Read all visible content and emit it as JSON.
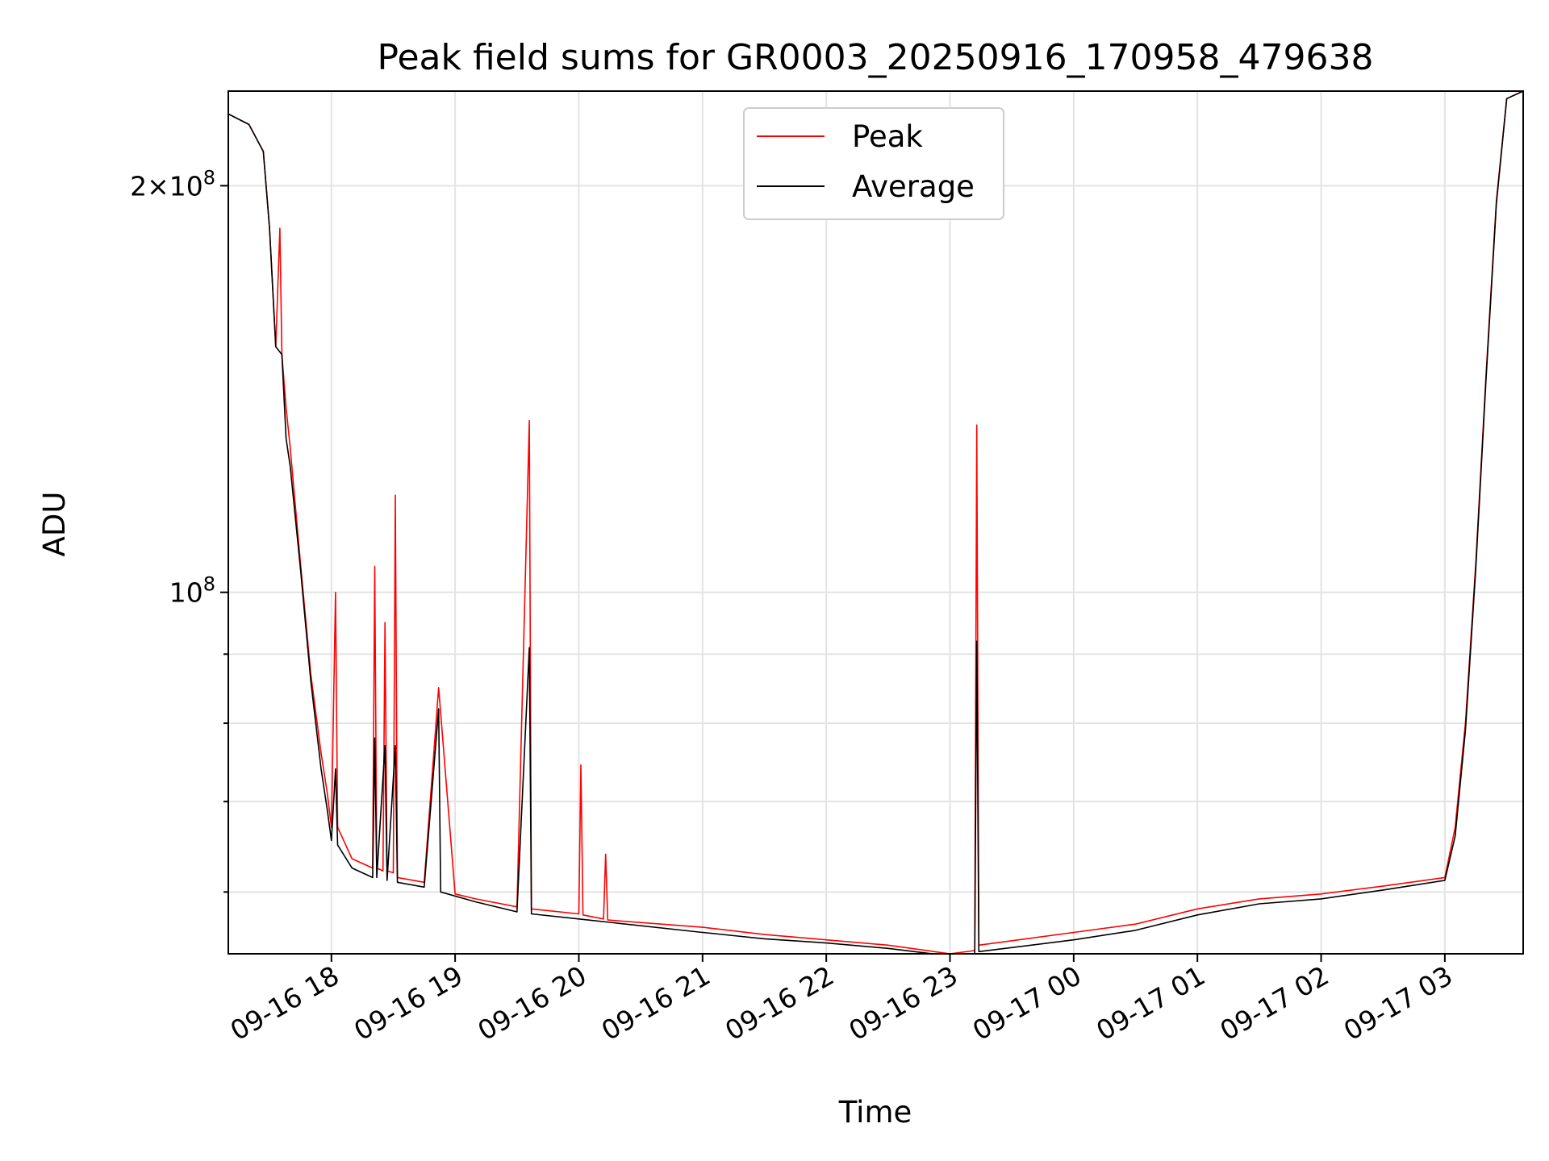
{
  "chart_data": {
    "type": "line",
    "title": "Peak field sums for GR0003_20250916_170958_479638",
    "xlabel": "Time",
    "ylabel": "ADU",
    "y_scale": "log",
    "x_range": [
      "09-16 17:10",
      "09-17 03:38"
    ],
    "y_range": [
      54000000,
      235000000
    ],
    "grid": true,
    "legend_position": "top-center",
    "x_ticks": [
      "09-16 18",
      "09-16 19",
      "09-16 20",
      "09-16 21",
      "09-16 22",
      "09-16 23",
      "09-17 00",
      "09-17 01",
      "09-17 02",
      "09-17 03"
    ],
    "y_ticks_labeled": [
      {
        "value": 100000000,
        "label": "10^8"
      },
      {
        "value": 200000000,
        "label": "2×10^8"
      }
    ],
    "y_ticks_minor": [
      60000000,
      70000000,
      80000000,
      90000000
    ],
    "series": [
      {
        "name": "Peak",
        "color": "#ff0000",
        "points": [
          [
            "09-16 17:10",
            226000000
          ],
          [
            "09-16 17:20",
            222000000
          ],
          [
            "09-16 17:27",
            212000000
          ],
          [
            "09-16 17:30",
            186000000
          ],
          [
            "09-16 17:33",
            152000000
          ],
          [
            "09-16 17:35",
            186000000
          ],
          [
            "09-16 17:36",
            150000000
          ],
          [
            "09-16 17:38",
            137000000
          ],
          [
            "09-16 17:40",
            128000000
          ],
          [
            "09-16 17:45",
            105000000
          ],
          [
            "09-16 17:50",
            87000000
          ],
          [
            "09-16 17:55",
            76000000
          ],
          [
            "09-16 17:58",
            71000000
          ],
          [
            "09-16 18:00",
            67000000
          ],
          [
            "09-16 18:02",
            100000000
          ],
          [
            "09-16 18:03",
            67000000
          ],
          [
            "09-16 18:10",
            63500000
          ],
          [
            "09-16 18:20",
            62500000
          ],
          [
            "09-16 18:21",
            104500000
          ],
          [
            "09-16 18:22",
            62500000
          ],
          [
            "09-16 18:25",
            62200000
          ],
          [
            "09-16 18:26",
            95000000
          ],
          [
            "09-16 18:27",
            62200000
          ],
          [
            "09-16 18:30",
            62000000
          ],
          [
            "09-16 18:31",
            118000000
          ],
          [
            "09-16 18:32",
            61500000
          ],
          [
            "09-16 18:45",
            61000000
          ],
          [
            "09-16 19:00",
            59800000
          ],
          [
            "09-16 18:52",
            85000000
          ],
          [
            "09-16 19:10",
            59300000
          ],
          [
            "09-16 19:30",
            58500000
          ],
          [
            "09-16 19:36",
            134000000
          ],
          [
            "09-16 19:37",
            58300000
          ],
          [
            "09-16 20:00",
            57800000
          ],
          [
            "09-16 20:01",
            74500000
          ],
          [
            "09-16 20:02",
            57700000
          ],
          [
            "09-16 20:12",
            57300000
          ],
          [
            "09-16 20:13",
            64000000
          ],
          [
            "09-16 20:14",
            57200000
          ],
          [
            "09-16 21:00",
            56500000
          ],
          [
            "09-16 21:30",
            55800000
          ],
          [
            "09-16 22:00",
            55300000
          ],
          [
            "09-16 22:30",
            54800000
          ],
          [
            "09-16 23:00",
            54000000
          ],
          [
            "09-16 23:12",
            54300000
          ],
          [
            "09-16 23:13",
            133000000
          ],
          [
            "09-16 23:14",
            54800000
          ],
          [
            "09-17 00:00",
            56000000
          ],
          [
            "09-17 00:30",
            56800000
          ],
          [
            "09-17 01:00",
            58300000
          ],
          [
            "09-17 01:30",
            59300000
          ],
          [
            "09-17 02:00",
            59800000
          ],
          [
            "09-17 02:30",
            60600000
          ],
          [
            "09-17 03:00",
            61500000
          ],
          [
            "09-17 03:05",
            67000000
          ],
          [
            "09-17 03:10",
            80000000
          ],
          [
            "09-17 03:15",
            105000000
          ],
          [
            "09-17 03:20",
            145000000
          ],
          [
            "09-17 03:25",
            195000000
          ],
          [
            "09-17 03:30",
            232000000
          ],
          [
            "09-17 03:38",
            235000000
          ]
        ]
      },
      {
        "name": "Average",
        "color": "#000000",
        "points": [
          [
            "09-16 17:10",
            226000000
          ],
          [
            "09-16 17:20",
            222000000
          ],
          [
            "09-16 17:27",
            212000000
          ],
          [
            "09-16 17:30",
            186000000
          ],
          [
            "09-16 17:33",
            152000000
          ],
          [
            "09-16 17:36",
            150000000
          ],
          [
            "09-16 17:38",
            130000000
          ],
          [
            "09-16 17:40",
            124000000
          ],
          [
            "09-16 17:45",
            104000000
          ],
          [
            "09-16 17:50",
            86000000
          ],
          [
            "09-16 17:55",
            74000000
          ],
          [
            "09-16 17:58",
            69000000
          ],
          [
            "09-16 18:00",
            65500000
          ],
          [
            "09-16 18:02",
            74000000
          ],
          [
            "09-16 18:03",
            65000000
          ],
          [
            "09-16 18:10",
            62500000
          ],
          [
            "09-16 18:20",
            61500000
          ],
          [
            "09-16 18:21",
            78000000
          ],
          [
            "09-16 18:22",
            61500000
          ],
          [
            "09-16 18:26",
            77000000
          ],
          [
            "09-16 18:27",
            61200000
          ],
          [
            "09-16 18:31",
            77000000
          ],
          [
            "09-16 18:32",
            61000000
          ],
          [
            "09-16 18:45",
            60500000
          ],
          [
            "09-16 18:52",
            82000000
          ],
          [
            "09-16 18:53",
            60000000
          ],
          [
            "09-16 19:10",
            59000000
          ],
          [
            "09-16 19:30",
            58000000
          ],
          [
            "09-16 19:36",
            91000000
          ],
          [
            "09-16 19:37",
            57800000
          ],
          [
            "09-16 20:00",
            57300000
          ],
          [
            "09-16 21:00",
            56000000
          ],
          [
            "09-16 21:30",
            55400000
          ],
          [
            "09-16 22:00",
            55000000
          ],
          [
            "09-16 22:30",
            54500000
          ],
          [
            "09-16 23:00",
            53800000
          ],
          [
            "09-16 23:12",
            54000000
          ],
          [
            "09-16 23:13",
            92000000
          ],
          [
            "09-16 23:14",
            54200000
          ],
          [
            "09-17 00:00",
            55300000
          ],
          [
            "09-17 00:30",
            56200000
          ],
          [
            "09-17 01:00",
            57700000
          ],
          [
            "09-17 01:30",
            58800000
          ],
          [
            "09-17 02:00",
            59300000
          ],
          [
            "09-17 02:30",
            60200000
          ],
          [
            "09-17 03:00",
            61200000
          ],
          [
            "09-17 03:05",
            66000000
          ],
          [
            "09-17 03:10",
            79000000
          ],
          [
            "09-17 03:15",
            104000000
          ],
          [
            "09-17 03:20",
            144000000
          ],
          [
            "09-17 03:25",
            194000000
          ],
          [
            "09-17 03:30",
            232000000
          ],
          [
            "09-17 03:38",
            235000000
          ]
        ]
      }
    ]
  }
}
